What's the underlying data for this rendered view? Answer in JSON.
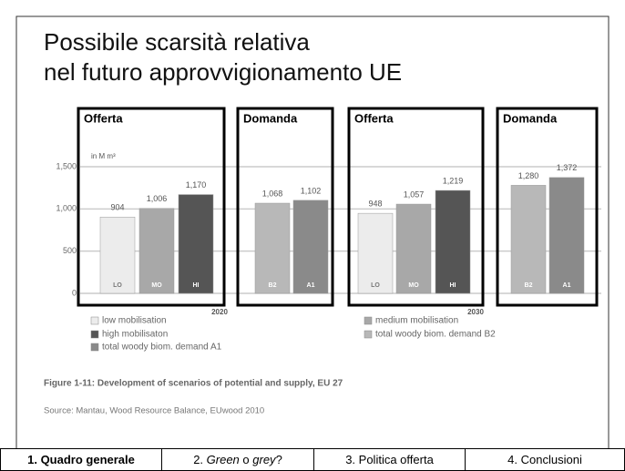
{
  "title": [
    "Possibile scarsità relativa",
    "nel futuro approvvigionamento UE"
  ],
  "boxes": [
    "Offerta",
    "Domanda",
    "Offerta",
    "Domanda"
  ],
  "chart_data": {
    "type": "bar",
    "unit": "in M m³",
    "categories": [
      "LO",
      "MO",
      "HI",
      "B2",
      "A1",
      "LO",
      "MO",
      "HI",
      "B2",
      "A1"
    ],
    "values": [
      904,
      1006,
      1170,
      1068,
      1102,
      948,
      1057,
      1219,
      1280,
      1372
    ],
    "value_labels": [
      "904",
      "1,006",
      "1,170",
      "1,068",
      "1,102",
      "948",
      "1,057",
      "1,219",
      "1,280",
      "1,372"
    ],
    "colors": [
      "#ececec",
      "#a8a8a8",
      "#555555",
      "#b8b8b8",
      "#8a8a8a",
      "#ececec",
      "#a8a8a8",
      "#555555",
      "#b8b8b8",
      "#8a8a8a"
    ],
    "groups": [
      "2020",
      "2030"
    ],
    "ylim": [
      0,
      1500
    ],
    "yticks": [
      0,
      500,
      {
        "value": 1000,
        "label": "1,000"
      },
      {
        "value": 1500,
        "label": "1,500"
      }
    ],
    "grid": true,
    "legend": [
      {
        "name": "low mobilisation",
        "color": "#ececec"
      },
      {
        "name": "high mobilisaton",
        "color": "#555555"
      },
      {
        "name": "total woody biom. demand A1",
        "color": "#8a8a8a"
      },
      {
        "name": "medium mobilisation",
        "color": "#a8a8a8"
      },
      {
        "name": "total woody biom. demand B2",
        "color": "#b8b8b8"
      }
    ],
    "caption": "Figure 1-11: Development of scenarios of potential and supply, EU 27",
    "source": "Source: Mantau, Wood Resource Balance, EUwood 2010"
  },
  "nav": {
    "tab1": "1. Quadro generale",
    "tab2": [
      "2. ",
      "Green",
      " o ",
      "grey",
      "?"
    ],
    "tab3": "3.  Politica offerta",
    "tab4": "4. Conclusioni"
  }
}
